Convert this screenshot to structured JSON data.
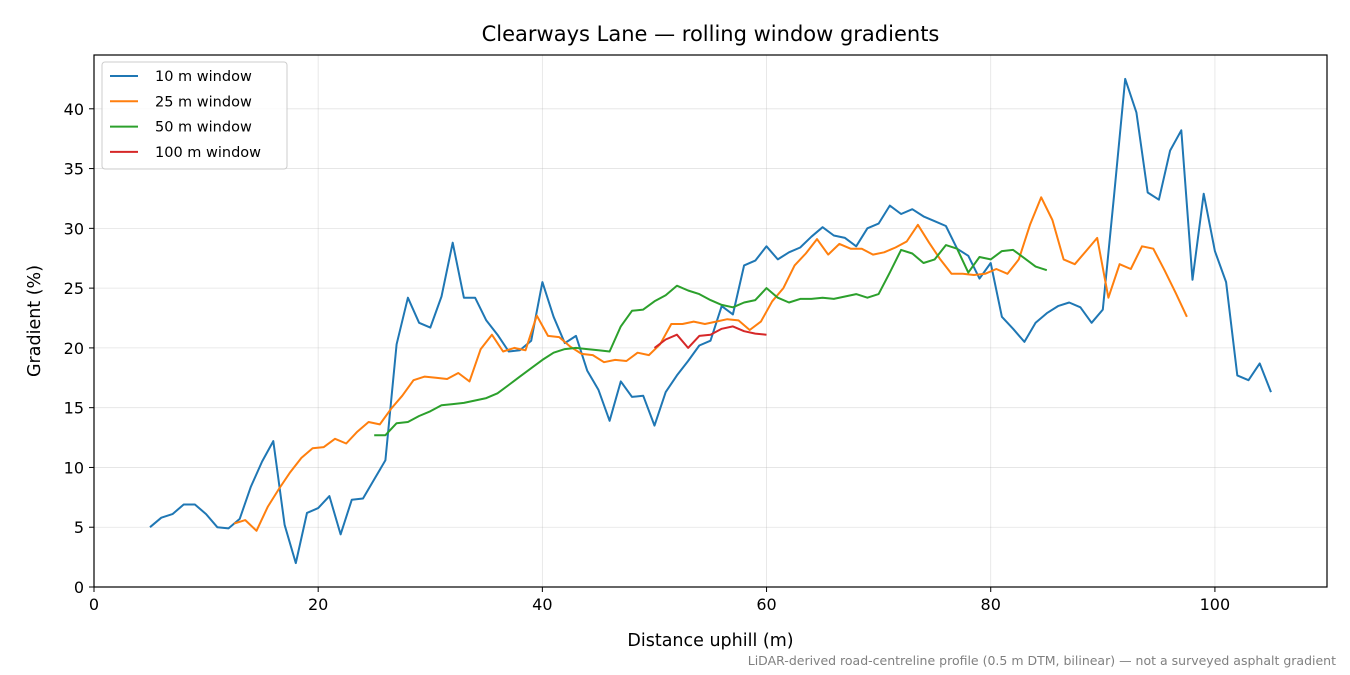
{
  "chart_data": {
    "type": "line",
    "title": "Clearways Lane — rolling window gradients",
    "xlabel": "Distance uphill (m)",
    "ylabel": "Gradient (%)",
    "footnote": "LiDAR-derived road-centreline profile (0.5 m DTM, bilinear) — not a surveyed asphalt gradient",
    "xlim": [
      0,
      110
    ],
    "ylim": [
      0,
      44.5
    ],
    "xticks": [
      0,
      20,
      40,
      60,
      80,
      100
    ],
    "yticks": [
      0,
      5,
      10,
      15,
      20,
      25,
      30,
      35,
      40
    ],
    "grid": true,
    "legend_position": "top-left",
    "series": [
      {
        "name": "10 m window",
        "color": "#1f77b4",
        "x": [
          5,
          6,
          7,
          8,
          9,
          10,
          11,
          12,
          13,
          14,
          15,
          16,
          17,
          18,
          19,
          20,
          21,
          22,
          23,
          24,
          25,
          26,
          27,
          28,
          29,
          30,
          31,
          32,
          33,
          34,
          35,
          36,
          37,
          38,
          39,
          40,
          41,
          42,
          43,
          44,
          45,
          46,
          47,
          48,
          49,
          50,
          51,
          52,
          53,
          54,
          55,
          56,
          57,
          58,
          59,
          60,
          61,
          62,
          63,
          64,
          65,
          66,
          67,
          68,
          69,
          70,
          71,
          72,
          73,
          74,
          75,
          76,
          77,
          78,
          79,
          80,
          81,
          82,
          83,
          84,
          85,
          86,
          87,
          88,
          89,
          90,
          91,
          92,
          93,
          94,
          95,
          96,
          97,
          98,
          99,
          100,
          101,
          102,
          103,
          104,
          105
        ],
        "y": [
          5.0,
          5.8,
          6.1,
          6.9,
          6.9,
          6.1,
          5.0,
          4.9,
          5.7,
          8.4,
          10.5,
          12.2,
          5.2,
          2.0,
          6.2,
          6.6,
          7.6,
          4.4,
          7.3,
          7.4,
          9.0,
          10.6,
          20.3,
          24.2,
          22.1,
          21.7,
          24.3,
          28.8,
          24.2,
          24.2,
          22.3,
          21.1,
          19.7,
          19.8,
          20.6,
          25.5,
          22.6,
          20.4,
          21.0,
          18.1,
          16.5,
          13.9,
          17.2,
          15.9,
          16.0,
          13.5,
          16.3,
          17.7,
          18.9,
          20.2,
          20.6,
          23.5,
          22.8,
          26.9,
          27.3,
          28.5,
          27.4,
          28.0,
          28.4,
          29.3,
          30.1,
          29.4,
          29.2,
          28.5,
          30.0,
          30.4,
          31.9,
          31.2,
          31.6,
          31.0,
          30.6,
          30.2,
          28.3,
          27.7,
          25.8,
          27.1,
          22.6,
          21.6,
          20.5,
          22.1,
          22.9,
          23.5,
          23.8,
          23.4,
          22.1,
          23.2,
          32.7,
          42.5,
          39.7,
          33.0,
          32.4,
          36.5,
          38.2,
          25.7,
          32.9,
          28.1,
          25.5,
          17.7,
          17.3,
          18.7,
          16.3
        ]
      },
      {
        "name": "25 m window",
        "color": "#ff7f0e",
        "x": [
          12.5,
          13.5,
          14.5,
          15.5,
          16.5,
          17.5,
          18.5,
          19.5,
          20.5,
          21.5,
          22.5,
          23.5,
          24.5,
          25.5,
          26.5,
          27.5,
          28.5,
          29.5,
          30.5,
          31.5,
          32.5,
          33.5,
          34.5,
          35.5,
          36.5,
          37.5,
          38.5,
          39.5,
          40.5,
          41.5,
          42.5,
          43.5,
          44.5,
          45.5,
          46.5,
          47.5,
          48.5,
          49.5,
          50.5,
          51.5,
          52.5,
          53.5,
          54.5,
          55.5,
          56.5,
          57.5,
          58.5,
          59.5,
          60.5,
          61.5,
          62.5,
          63.5,
          64.5,
          65.5,
          66.5,
          67.5,
          68.5,
          69.5,
          70.5,
          71.5,
          72.5,
          73.5,
          74.5,
          75.5,
          76.5,
          77.5,
          78.5,
          79.5,
          80.5,
          81.5,
          82.5,
          83.5,
          84.5,
          85.5,
          86.5,
          87.5,
          88.5,
          89.5,
          90.5,
          91.5,
          92.5,
          93.5,
          94.5,
          95.5,
          96.5,
          97.5
        ],
        "y": [
          5.3,
          5.6,
          4.7,
          6.7,
          8.2,
          9.6,
          10.8,
          11.6,
          11.7,
          12.4,
          12.0,
          13.0,
          13.8,
          13.6,
          14.9,
          16.0,
          17.3,
          17.6,
          17.5,
          17.4,
          17.9,
          17.2,
          19.9,
          21.1,
          19.7,
          20.0,
          19.8,
          22.7,
          21.0,
          20.9,
          20.1,
          19.5,
          19.4,
          18.8,
          19.0,
          18.9,
          19.6,
          19.4,
          20.3,
          22.0,
          22.0,
          22.2,
          22.0,
          22.2,
          22.4,
          22.3,
          21.5,
          22.2,
          23.9,
          25.0,
          26.9,
          27.9,
          29.1,
          27.8,
          28.7,
          28.3,
          28.3,
          27.8,
          28.0,
          28.4,
          28.9,
          30.3,
          28.8,
          27.4,
          26.2,
          26.2,
          26.1,
          26.2,
          26.6,
          26.2,
          27.4,
          30.3,
          32.6,
          30.7,
          27.4,
          27.0,
          28.1,
          29.2,
          24.2,
          27.0,
          26.6,
          28.5,
          28.3,
          26.5,
          24.6,
          22.6
        ]
      },
      {
        "name": "50 m window",
        "color": "#2ca02c",
        "x": [
          25,
          26,
          27,
          28,
          29,
          30,
          31,
          32,
          33,
          34,
          35,
          36,
          37,
          38,
          39,
          40,
          41,
          42,
          43,
          44,
          45,
          46,
          47,
          48,
          49,
          50,
          51,
          52,
          53,
          54,
          55,
          56,
          57,
          58,
          59,
          60,
          61,
          62,
          63,
          64,
          65,
          66,
          67,
          68,
          69,
          70,
          71,
          72,
          73,
          74,
          75,
          76,
          77,
          78,
          79,
          80,
          81,
          82,
          83,
          84,
          85
        ],
        "y": [
          12.7,
          12.7,
          13.7,
          13.8,
          14.3,
          14.7,
          15.2,
          15.3,
          15.4,
          15.6,
          15.8,
          16.2,
          16.9,
          17.6,
          18.3,
          19.0,
          19.6,
          19.9,
          20.0,
          19.9,
          19.8,
          19.7,
          21.8,
          23.1,
          23.2,
          23.9,
          24.4,
          25.2,
          24.8,
          24.5,
          24.0,
          23.6,
          23.4,
          23.8,
          24.0,
          25.0,
          24.2,
          23.8,
          24.1,
          24.1,
          24.2,
          24.1,
          24.3,
          24.5,
          24.2,
          24.5,
          26.3,
          28.2,
          27.9,
          27.1,
          27.4,
          28.6,
          28.3,
          26.3,
          27.6,
          27.4,
          28.1,
          28.2,
          27.5,
          26.8,
          26.5
        ]
      },
      {
        "name": "100 m window",
        "color": "#d62728",
        "x": [
          50,
          51,
          52,
          53,
          54,
          55,
          56,
          57,
          58,
          59,
          60
        ],
        "y": [
          20.0,
          20.7,
          21.1,
          20.0,
          21.0,
          21.1,
          21.6,
          21.8,
          21.4,
          21.2,
          21.1
        ]
      }
    ]
  }
}
